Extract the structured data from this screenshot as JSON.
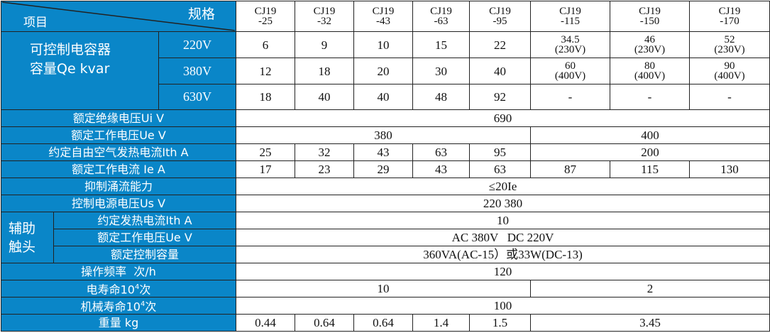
{
  "header": {
    "item_label": "项目",
    "spec_label": "规格",
    "models": [
      [
        "CJ19",
        "-25"
      ],
      [
        "CJ19",
        "-32"
      ],
      [
        "CJ19",
        "-43"
      ],
      [
        "CJ19",
        "-63"
      ],
      [
        "CJ19",
        "-95"
      ],
      [
        "CJ19",
        "-115"
      ],
      [
        "CJ19",
        "-150"
      ],
      [
        "CJ19",
        "-170"
      ]
    ]
  },
  "capacitor": {
    "label_line1": "可控制电容器",
    "label_line2": "容量Qe kvar",
    "rows": [
      {
        "voltage": "220V",
        "values": [
          "6",
          "9",
          "10",
          "15",
          "22",
          [
            "34.5",
            "(230V)"
          ],
          [
            "46",
            "(230V)"
          ],
          [
            "52",
            "(230V)"
          ]
        ]
      },
      {
        "voltage": "380V",
        "values": [
          "12",
          "18",
          "20",
          "30",
          "40",
          [
            "60",
            "(400V)"
          ],
          [
            "80",
            "(400V)"
          ],
          [
            "90",
            "(400V)"
          ]
        ]
      },
      {
        "voltage": "630V",
        "values": [
          "18",
          "40",
          "40",
          "48",
          "92",
          "-",
          "-",
          "-"
        ]
      }
    ]
  },
  "rows": {
    "ui": {
      "label": "额定绝缘电压Ui  V",
      "value": "690"
    },
    "ue": {
      "label": "额定工作电压Ue  V",
      "values": [
        "380",
        "400"
      ]
    },
    "ith": {
      "label": "约定自由空气发热电流Ith  A",
      "values": [
        "25",
        "32",
        "43",
        "63",
        "95",
        "200"
      ]
    },
    "ie": {
      "label": "额定工作电流 Ie  A",
      "values": [
        "17",
        "23",
        "29",
        "43",
        "63",
        "87",
        "115",
        "130"
      ]
    },
    "surge": {
      "label": "抑制涌流能力",
      "value": "≤20Ie"
    },
    "us": {
      "label": "控制电源电压Us   V",
      "value": "220 380"
    },
    "aux": {
      "label_line1": "辅助",
      "label_line2": "触头",
      "ith": {
        "label": "约定发热电流Ith  A",
        "value": "10"
      },
      "ue": {
        "label": "额定工作电压Ue   V",
        "value": "AC 380V   DC 220V"
      },
      "cap": {
        "label": "额定控制容量",
        "value": "360VA(AC-15）或33W(DC-13)"
      }
    },
    "freq": {
      "label": "操作频率  次/h",
      "value": "120"
    },
    "elife": {
      "label": "电寿命10",
      "sup": "4",
      "unit": "次",
      "values": [
        "10",
        "2"
      ]
    },
    "mlife": {
      "label": "机械寿命10",
      "sup": "4",
      "unit": "次",
      "value": "100"
    },
    "weight": {
      "label": "重量 kg",
      "values": [
        "0.44",
        "0.64",
        "0.64",
        "1.4",
        "1.5",
        "3.45"
      ]
    }
  }
}
